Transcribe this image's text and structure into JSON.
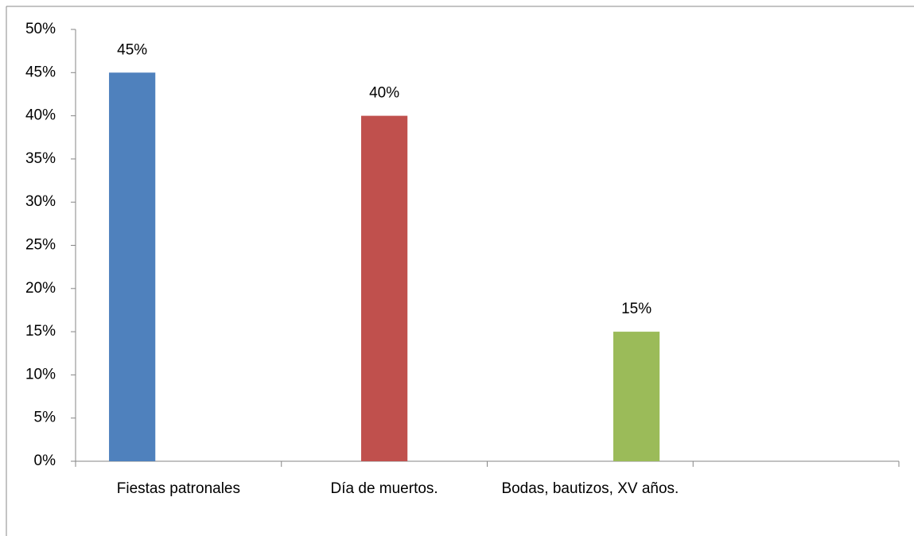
{
  "chart_data": {
    "type": "bar",
    "categories": [
      "Fiestas patronales",
      "Día de muertos.",
      "Bodas, bautizos, XV años.",
      null
    ],
    "values": [
      45,
      40,
      15,
      null
    ],
    "value_labels": [
      "45%",
      "40%",
      "15%",
      null
    ],
    "colors": [
      "#4f81bd",
      "#c0504d",
      "#9bbb59"
    ],
    "ylim": [
      0,
      50
    ],
    "yticks": [
      {
        "value": 0,
        "label": "0%"
      },
      {
        "value": 5,
        "label": "5%"
      },
      {
        "value": 10,
        "label": "10%"
      },
      {
        "value": 15,
        "label": "15%"
      },
      {
        "value": 20,
        "label": "20%"
      },
      {
        "value": 25,
        "label": "25%"
      },
      {
        "value": 30,
        "label": "30%"
      },
      {
        "value": 35,
        "label": "35%"
      },
      {
        "value": 40,
        "label": "40%"
      },
      {
        "value": 45,
        "label": "45%"
      },
      {
        "value": 50,
        "label": "50%"
      }
    ],
    "grid": false
  }
}
